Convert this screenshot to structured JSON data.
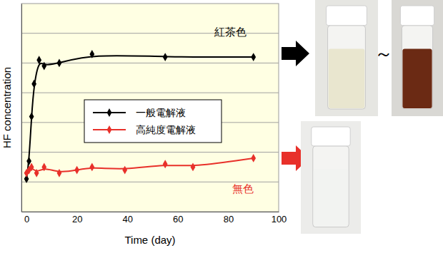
{
  "chart_data": {
    "type": "line",
    "x_label": "Time (day)",
    "y_label": "HF concentration",
    "xlim": [
      -2,
      100
    ],
    "xticks": [
      0,
      20,
      40,
      60,
      80,
      100
    ],
    "ylim": [
      0,
      7
    ],
    "yticks": [
      1,
      2,
      3,
      4,
      5,
      6
    ],
    "grid": "y",
    "tick_labels": "x",
    "legend": "center",
    "series": [
      {
        "name": "一般電解液",
        "color": "#000000",
        "marker": "diamond",
        "line_style": "smooth",
        "x": [
          0,
          1,
          2,
          3,
          5,
          7,
          13,
          26,
          55,
          90
        ],
        "values": [
          1.1,
          1.7,
          3.2,
          4.3,
          5.1,
          4.9,
          5.0,
          5.3,
          5.2,
          5.2
        ]
      },
      {
        "name": "高純度電解液",
        "color": "#e8302a",
        "marker": "diamond",
        "line_style": "smooth",
        "x": [
          0,
          1,
          2,
          4,
          7,
          13,
          20,
          26,
          39,
          55,
          66,
          90
        ],
        "values": [
          1.3,
          1.4,
          1.5,
          1.3,
          1.5,
          1.3,
          1.4,
          1.5,
          1.4,
          1.6,
          1.5,
          1.8
        ]
      }
    ],
    "annotations": [
      {
        "text": "紅茶色",
        "color": "#000000"
      },
      {
        "text": "無色",
        "color": "#e8302a"
      },
      {
        "text": "～",
        "color": "#000000"
      }
    ]
  }
}
